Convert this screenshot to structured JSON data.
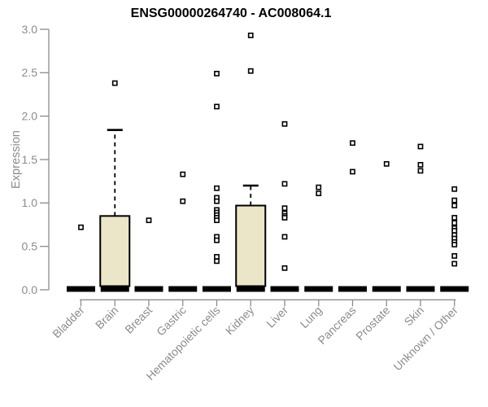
{
  "chart_data": {
    "type": "boxplot",
    "title": "ENSG00000264740 - AC008064.1",
    "ylabel": "Expression",
    "xlabel": "",
    "ylim": [
      0.0,
      3.0
    ],
    "ytick_labels": [
      "0.0",
      "0.5",
      "1.0",
      "1.5",
      "2.0",
      "2.5",
      "3.0"
    ],
    "grid": false,
    "legend": "none",
    "categories": [
      "Bladder",
      "Brain",
      "Breast",
      "Gastric",
      "Hematopoietic cells",
      "Kidney",
      "Liver",
      "Lung",
      "Pancreas",
      "Prostate",
      "Skin",
      "Unknown / Other"
    ],
    "colors": {
      "box_fill": "#ECE6C9",
      "box_stroke": "#000000",
      "axis": "#8C8C8C",
      "tick_text": "#8C8C8C",
      "title": "#000000",
      "point_fill": "#FFFFFF",
      "point_stroke": "#000000",
      "background": "#FFFFFF"
    },
    "boxes": [
      {
        "category": "Bladder",
        "flat": true,
        "q1": 0.0,
        "median": 0.02,
        "q3": 0.0,
        "whisker_high": 0.0,
        "points": [
          0.72
        ]
      },
      {
        "category": "Brain",
        "flat": false,
        "q1": 0.02,
        "median": 0.02,
        "q3": 0.85,
        "whisker_high": 1.84,
        "points": [
          2.38
        ]
      },
      {
        "category": "Breast",
        "flat": true,
        "q1": 0.0,
        "median": 0.02,
        "q3": 0.0,
        "whisker_high": 0.0,
        "points": [
          0.8
        ]
      },
      {
        "category": "Gastric",
        "flat": true,
        "q1": 0.0,
        "median": 0.02,
        "q3": 0.0,
        "whisker_high": 0.0,
        "points": [
          1.33,
          1.02
        ]
      },
      {
        "category": "Hematopoietic cells",
        "flat": true,
        "q1": 0.0,
        "median": 0.02,
        "q3": 0.0,
        "whisker_high": 0.0,
        "points": [
          2.49,
          2.11,
          1.17,
          1.06,
          1.02,
          0.92,
          0.89,
          0.86,
          0.83,
          0.8,
          0.61,
          0.57,
          0.38,
          0.33
        ]
      },
      {
        "category": "Kidney",
        "flat": false,
        "q1": 0.02,
        "median": 0.02,
        "q3": 0.97,
        "whisker_high": 1.2,
        "points": [
          2.93,
          2.52
        ]
      },
      {
        "category": "Liver",
        "flat": true,
        "q1": 0.0,
        "median": 0.02,
        "q3": 0.0,
        "whisker_high": 0.0,
        "points": [
          1.91,
          1.22,
          0.94,
          0.88,
          0.85,
          0.83,
          0.61,
          0.25
        ]
      },
      {
        "category": "Lung",
        "flat": true,
        "q1": 0.0,
        "median": 0.02,
        "q3": 0.0,
        "whisker_high": 0.0,
        "points": [
          1.18,
          1.11
        ]
      },
      {
        "category": "Pancreas",
        "flat": true,
        "q1": 0.0,
        "median": 0.02,
        "q3": 0.0,
        "whisker_high": 0.0,
        "points": [
          1.69,
          1.36
        ]
      },
      {
        "category": "Prostate",
        "flat": true,
        "q1": 0.0,
        "median": 0.02,
        "q3": 0.0,
        "whisker_high": 0.0,
        "points": [
          1.45
        ]
      },
      {
        "category": "Skin",
        "flat": true,
        "q1": 0.0,
        "median": 0.02,
        "q3": 0.0,
        "whisker_high": 0.0,
        "points": [
          1.65,
          1.44,
          1.37
        ]
      },
      {
        "category": "Unknown / Other",
        "flat": true,
        "q1": 0.0,
        "median": 0.02,
        "q3": 0.0,
        "whisker_high": 0.0,
        "points": [
          1.16,
          1.03,
          0.97,
          0.83,
          0.77,
          0.71,
          0.68,
          0.63,
          0.59,
          0.55,
          0.52,
          0.39,
          0.3
        ]
      }
    ]
  }
}
